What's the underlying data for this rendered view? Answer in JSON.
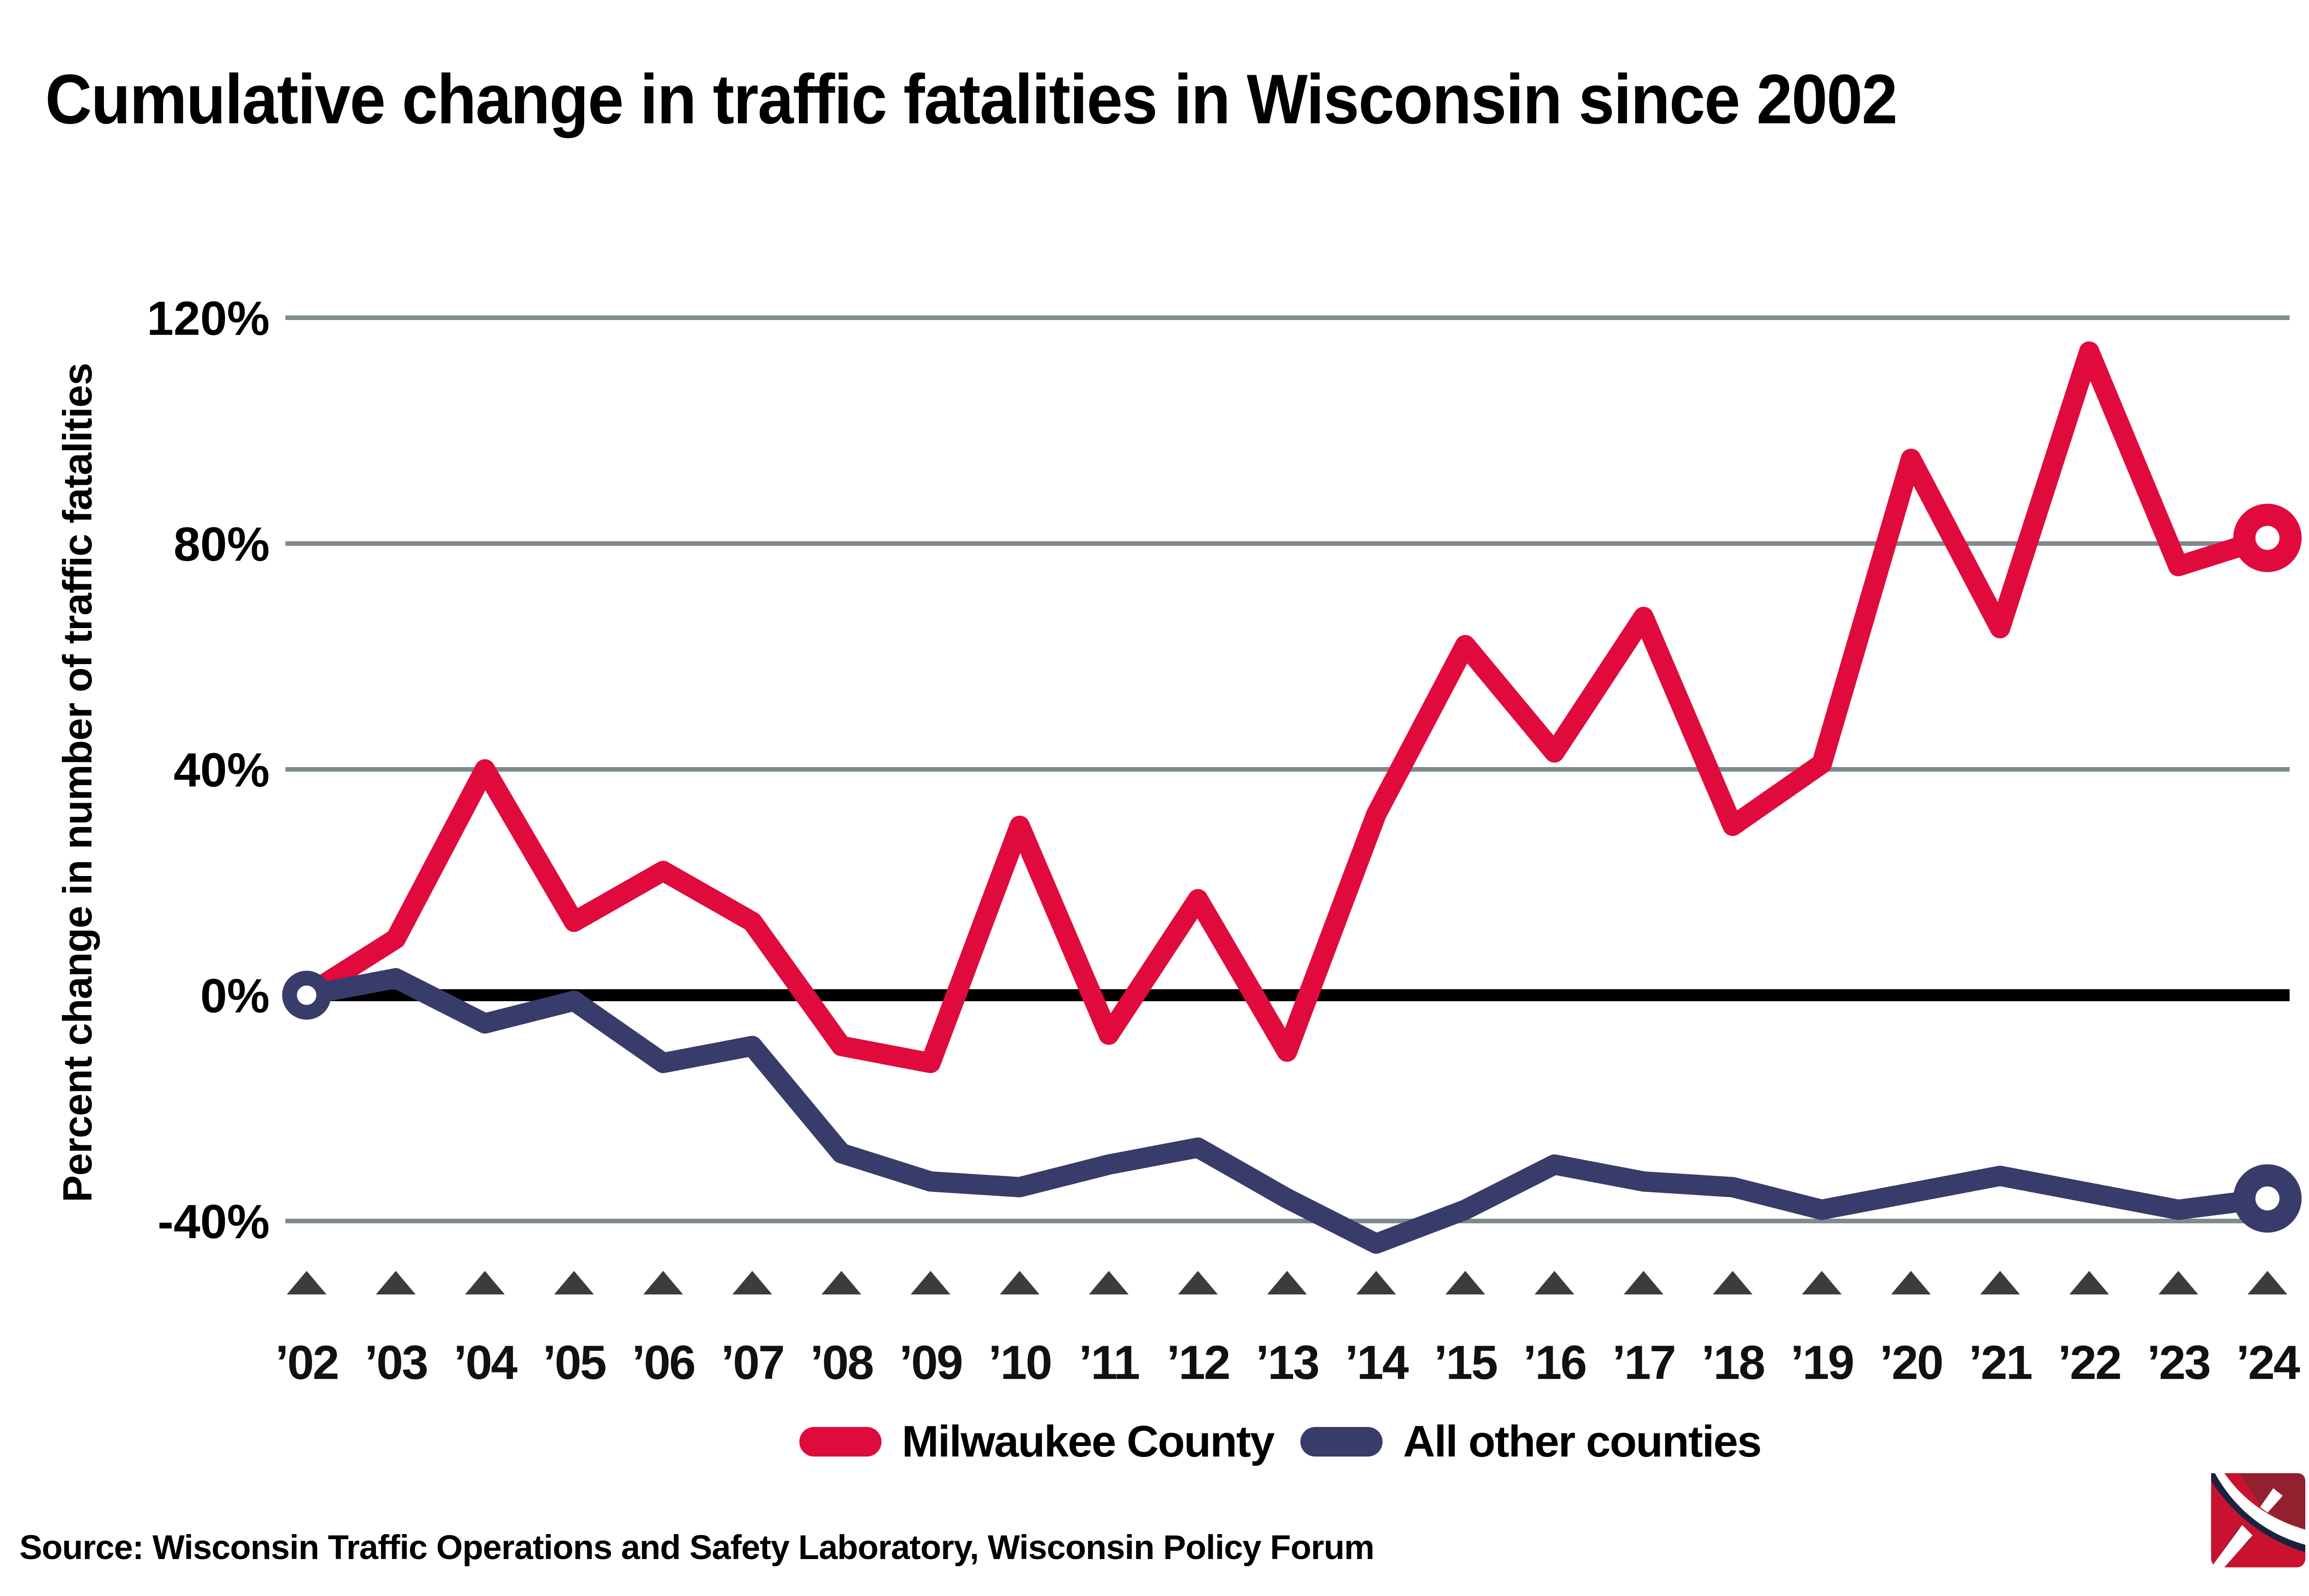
{
  "header": {
    "title": "Cumulative change in traffic fatalities in Wisconsin since 2002"
  },
  "axes": {
    "y_label": "Percent change in number of traffic fatalities",
    "y_ticks": [
      "120%",
      "80%",
      "40%",
      "0%",
      "-40%"
    ],
    "y_tick_values": [
      120,
      80,
      40,
      0,
      -40
    ],
    "x_tick_marker": "triangle-up"
  },
  "legend": [
    {
      "label": "Milwaukee County",
      "color": "#e10a3c"
    },
    {
      "label": "All other counties",
      "color": "#383c6a"
    }
  ],
  "source": {
    "text": "Source: Wisconsin Traffic Operations and Safety Laboratory, Wisconsin Policy Forum"
  },
  "logo": {
    "name": "wisconsin-policy-forum-logo",
    "red": "#c9122f",
    "dark_red": "#93202e",
    "navy": "#1d2240"
  },
  "chart_data": {
    "type": "line",
    "title": "Cumulative change in traffic fatalities in Wisconsin since 2002",
    "xlabel": "",
    "ylabel": "Percent change in number of traffic fatalities",
    "ylim": [
      -48,
      128
    ],
    "grid": true,
    "legend_position": "bottom",
    "baseline_value": 0,
    "x_labels": [
      "’02",
      "’03",
      "’04",
      "’05",
      "’06",
      "’07",
      "’08",
      "’09",
      "’10",
      "’11",
      "’12",
      "’13",
      "’14",
      "’15",
      "’16",
      "’17",
      "’18",
      "’19",
      "’20",
      "’21",
      "’22",
      "’23",
      "’24"
    ],
    "x_years": [
      2002,
      2003,
      2004,
      2005,
      2006,
      2007,
      2008,
      2009,
      2010,
      2011,
      2012,
      2013,
      2014,
      2015,
      2016,
      2017,
      2018,
      2019,
      2020,
      2021,
      2022,
      2023,
      2024
    ],
    "series": [
      {
        "name": "Milwaukee County",
        "color": "#e10a3c",
        "values": [
          0,
          10,
          40,
          13,
          22,
          13,
          -9,
          -12,
          30,
          -7,
          17,
          -10,
          32,
          62,
          43,
          67,
          30,
          41,
          95,
          65,
          114,
          76,
          81
        ]
      },
      {
        "name": "All other counties",
        "color": "#383c6a",
        "values": [
          0,
          3,
          -5,
          -1,
          -12,
          -9,
          -28,
          -33,
          -34,
          -30,
          -27,
          -36,
          -44,
          -38,
          -30,
          -33,
          -34,
          -38,
          -35,
          -32,
          -35,
          -38,
          -36
        ]
      }
    ],
    "markers": {
      "start_ring_year": 2002,
      "end_ring_year": 2024
    }
  }
}
